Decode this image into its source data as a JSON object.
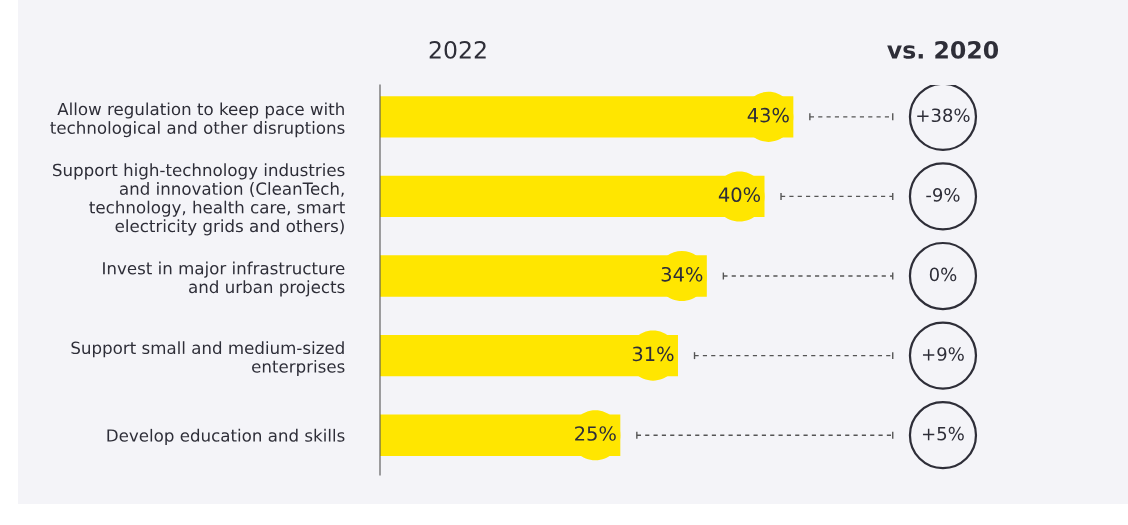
{
  "chart_data": {
    "type": "bar",
    "orientation": "horizontal",
    "title": "2022",
    "subtitle": "vs. 2020",
    "categories": [
      "Allow regulation to keep pace with\ntechnological and other disruptions",
      "Support high-technology industries\nand innovation (CleanTech,\ntechnology, health care, smart\nelectricity grids and others)",
      "Invest in major infrastructure\nand urban projects",
      "Support small and medium-sized\nenterprises",
      "Develop education and skills"
    ],
    "values": [
      43,
      40,
      34,
      31,
      25
    ],
    "color": "#ffe600",
    "data_labels": true,
    "value_labels": [
      "43%",
      "40%",
      "34%",
      "31%",
      "25%"
    ],
    "annotations": [
      "+38%",
      "-9%",
      "0%",
      "+9%",
      "+5%"
    ],
    "grid": false,
    "legend": false
  }
}
